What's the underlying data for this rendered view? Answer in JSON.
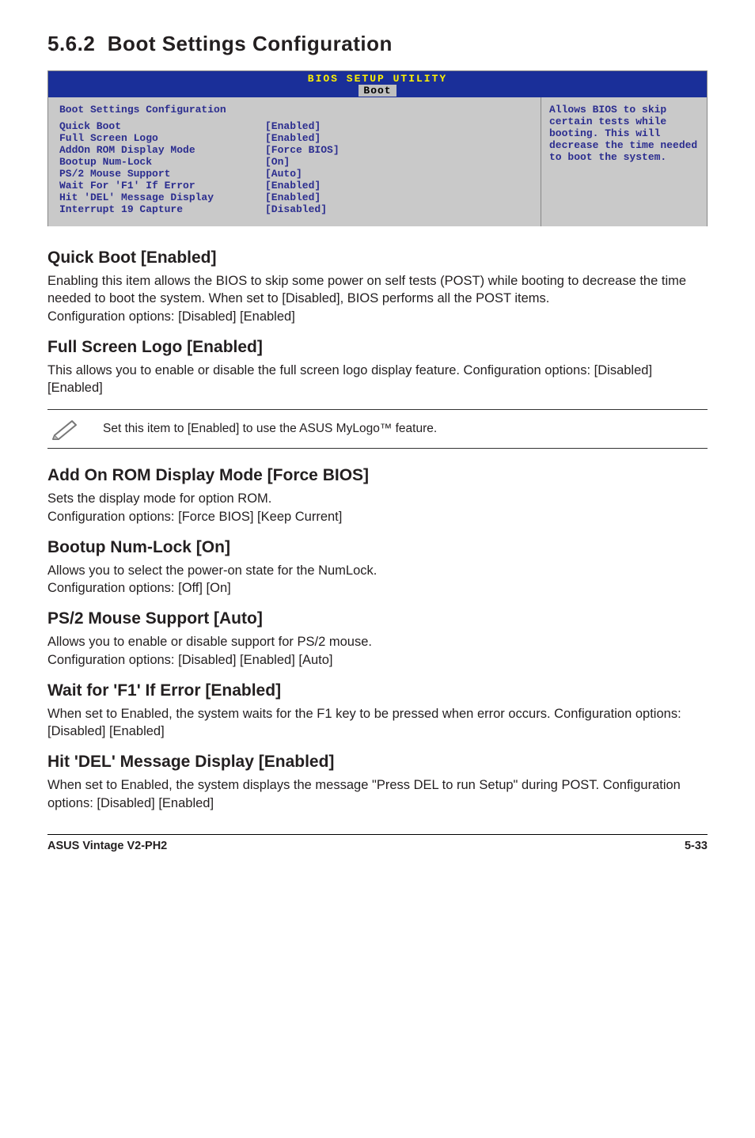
{
  "section": {
    "number": "5.6.2",
    "title": "Boot Settings Configuration"
  },
  "bios": {
    "header": "BIOS SETUP UTILITY",
    "tab": "Boot",
    "panel_title": "Boot Settings Configuration",
    "rows": [
      {
        "k": "Quick Boot",
        "v": "[Enabled]"
      },
      {
        "k": "Full Screen Logo",
        "v": "[Enabled]"
      },
      {
        "k": "AddOn ROM Display Mode",
        "v": "[Force BIOS]"
      },
      {
        "k": "Bootup Num-Lock",
        "v": "[On]"
      },
      {
        "k": "PS/2 Mouse Support",
        "v": "[Auto]"
      },
      {
        "k": "Wait For 'F1' If Error",
        "v": "[Enabled]"
      },
      {
        "k": "Hit 'DEL' Message Display",
        "v": "[Enabled]"
      },
      {
        "k": "Interrupt 19 Capture",
        "v": "[Disabled]"
      }
    ],
    "help": "Allows BIOS to skip certain tests while booting. This will decrease the time needed to boot the system.",
    "colors": {
      "header_bg": "#1a2f99",
      "header_fg": "#fff200",
      "body_bg": "#c9c9c9",
      "text_fg": "#2b2d8f"
    }
  },
  "items": [
    {
      "title": "Quick Boot [Enabled]",
      "body": "Enabling this item allows the BIOS to skip some power on self tests (POST) while booting to decrease the time needed to boot the system. When set to [Disabled], BIOS performs all the POST items.\nConfiguration options: [Disabled] [Enabled]"
    },
    {
      "title": "Full Screen Logo [Enabled]",
      "body": "This allows you to enable or disable the full screen logo display feature. Configuration options: [Disabled] [Enabled]"
    }
  ],
  "note": "Set this item to [Enabled] to use the ASUS MyLogo™ feature.",
  "items2": [
    {
      "title": "Add On ROM Display Mode [Force BIOS]",
      "body": "Sets the display mode for option ROM.\nConfiguration options: [Force BIOS] [Keep Current]"
    },
    {
      "title": "Bootup Num-Lock [On]",
      "body": "Allows you to select the power-on state for the NumLock.\nConfiguration options: [Off] [On]"
    },
    {
      "title": "PS/2 Mouse Support [Auto]",
      "body": "Allows you to enable or disable support for PS/2 mouse.\nConfiguration options: [Disabled] [Enabled] [Auto]"
    },
    {
      "title": "Wait for 'F1' If Error [Enabled]",
      "body": "When set to Enabled, the system waits for the F1 key to be pressed when error occurs. Configuration options: [Disabled] [Enabled]"
    },
    {
      "title": "Hit 'DEL' Message Display [Enabled]",
      "body": "When set to Enabled, the system displays the message \"Press DEL to run Setup\" during POST. Configuration options: [Disabled] [Enabled]"
    }
  ],
  "footer": {
    "left": "ASUS Vintage V2-PH2",
    "right": "5-33"
  }
}
